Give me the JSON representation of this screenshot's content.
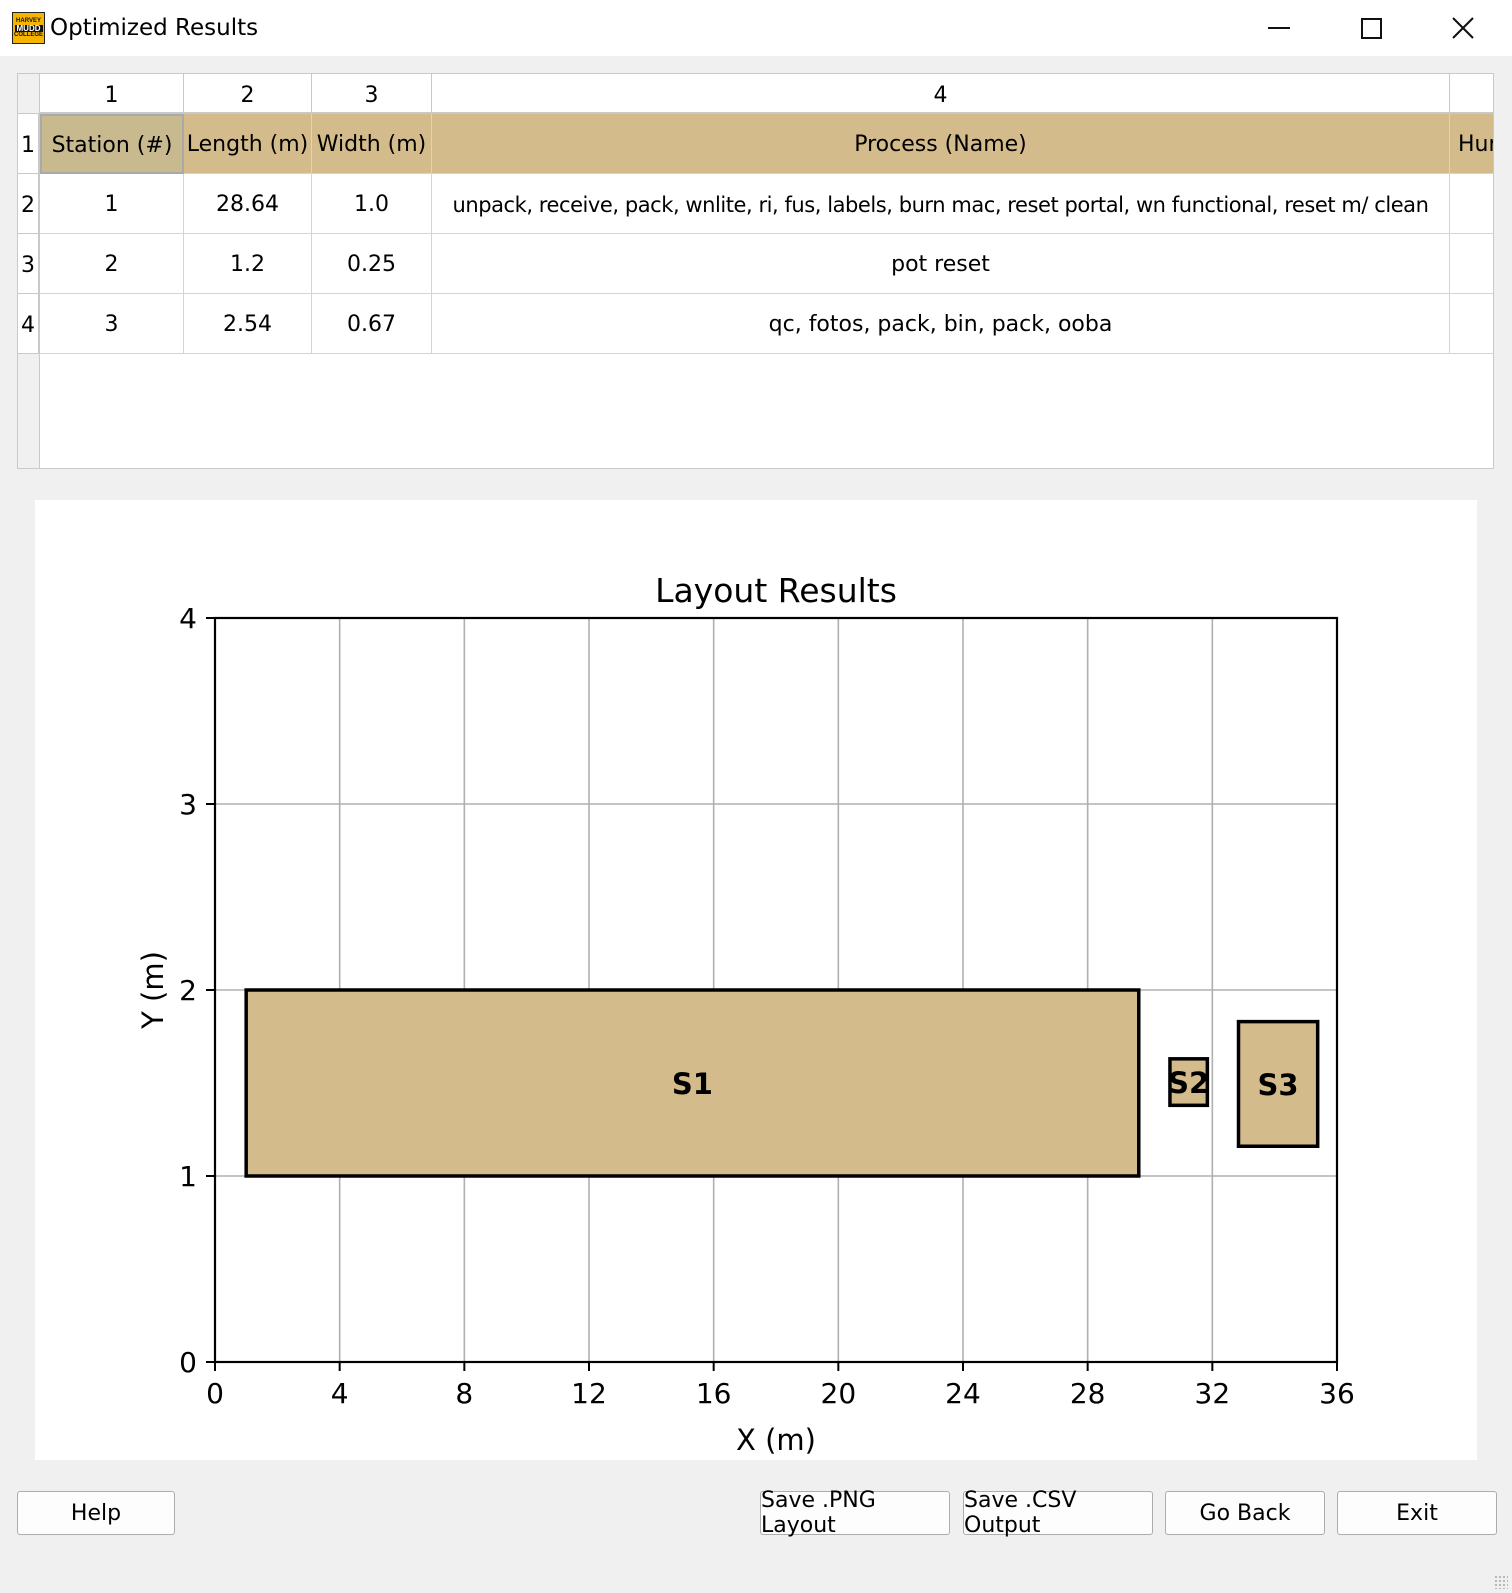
{
  "window": {
    "title": "Optimized Results",
    "logo_lines": [
      "HARVEY",
      "MUDD",
      "COLLEGE"
    ],
    "controls": [
      "minimize",
      "maximize",
      "close"
    ]
  },
  "table": {
    "column_headers": [
      "1",
      "2",
      "3",
      "4"
    ],
    "row_headers": [
      "1",
      "2",
      "3",
      "4"
    ],
    "rows": [
      [
        "Station (#)",
        "Length (m)",
        "Width (m)",
        "Process (Name)",
        "Huma"
      ],
      [
        "1",
        "28.64",
        "1.0",
        "unpack, receive, pack, wnlite, ri, fus, labels, burn mac, reset portal, wn functional, reset m/ clean",
        ""
      ],
      [
        "2",
        "1.2",
        "0.25",
        "pot reset",
        ""
      ],
      [
        "3",
        "2.54",
        "0.67",
        "qc, fotos, pack, bin, pack, ooba",
        ""
      ]
    ],
    "selected_cell": "Station (#)",
    "header_row_color": "#d4bb8b",
    "scrollbar_position": 0.45
  },
  "chart_data": {
    "type": "layout",
    "title": "Layout Results",
    "xlabel": "X (m)",
    "ylabel": "Y (m)",
    "xlim": [
      0,
      36
    ],
    "ylim": [
      0,
      4
    ],
    "xticks": [
      0,
      4,
      8,
      12,
      16,
      20,
      24,
      28,
      32,
      36
    ],
    "yticks": [
      0,
      1,
      2,
      3,
      4
    ],
    "grid": true,
    "fill_color": "#d4bb8b",
    "rectangles": [
      {
        "label": "S1",
        "x": 1.0,
        "y": 1.0,
        "width": 28.64,
        "height": 1.0
      },
      {
        "label": "S2",
        "x": 30.64,
        "y": 1.38,
        "width": 1.2,
        "height": 0.25
      },
      {
        "label": "S3",
        "x": 32.84,
        "y": 1.16,
        "width": 2.54,
        "height": 0.67
      }
    ]
  },
  "buttons": {
    "help": "Help",
    "save_png": "Save .PNG Layout",
    "save_csv": "Save .CSV Output",
    "go_back": "Go Back",
    "exit": "Exit"
  }
}
